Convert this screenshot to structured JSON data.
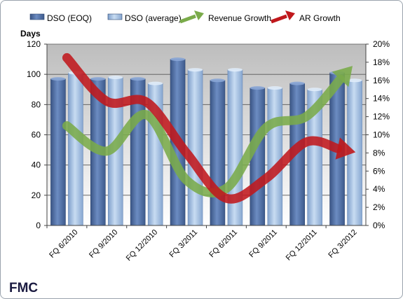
{
  "company": "FMC",
  "chart_data": {
    "type": "bar",
    "ylabel": "Days",
    "ylim": [
      0,
      120
    ],
    "yticks": [
      0,
      20,
      40,
      60,
      80,
      100,
      120
    ],
    "y2lim": [
      0,
      0.2
    ],
    "y2ticks": [
      "0%",
      "2%",
      "4%",
      "6%",
      "8%",
      "10%",
      "12%",
      "14%",
      "16%",
      "18%",
      "20%"
    ],
    "categories": [
      "FQ 6/2010",
      "FQ 9/2010",
      "FQ 12/2010",
      "FQ 3/2011",
      "FQ 6/2011",
      "FQ 9/2011",
      "FQ 12/2011",
      "FQ 3/2012"
    ],
    "legend_position": "top",
    "grid": true,
    "series": [
      {
        "name": "DSO (EOQ)",
        "kind": "bar",
        "axis": "left",
        "color": "#4f6fa6",
        "values": [
          97,
          97,
          97,
          110,
          96,
          91,
          94,
          101
        ]
      },
      {
        "name": "DSO (average)",
        "kind": "bar",
        "axis": "left",
        "color": "#a7c4e6",
        "values": [
          101,
          98,
          94,
          103,
          103,
          91,
          90,
          96
        ]
      },
      {
        "name": "Revenue Growth",
        "kind": "arrow",
        "axis": "right",
        "color": "#7aab4a",
        "values": [
          0.11,
          0.082,
          0.122,
          0.05,
          0.041,
          0.108,
          0.12,
          0.168
        ]
      },
      {
        "name": "AR Growth",
        "kind": "arrow",
        "axis": "right",
        "color": "#c0181c",
        "values": [
          0.185,
          0.137,
          0.136,
          0.08,
          0.03,
          0.052,
          0.092,
          0.083
        ]
      }
    ]
  }
}
